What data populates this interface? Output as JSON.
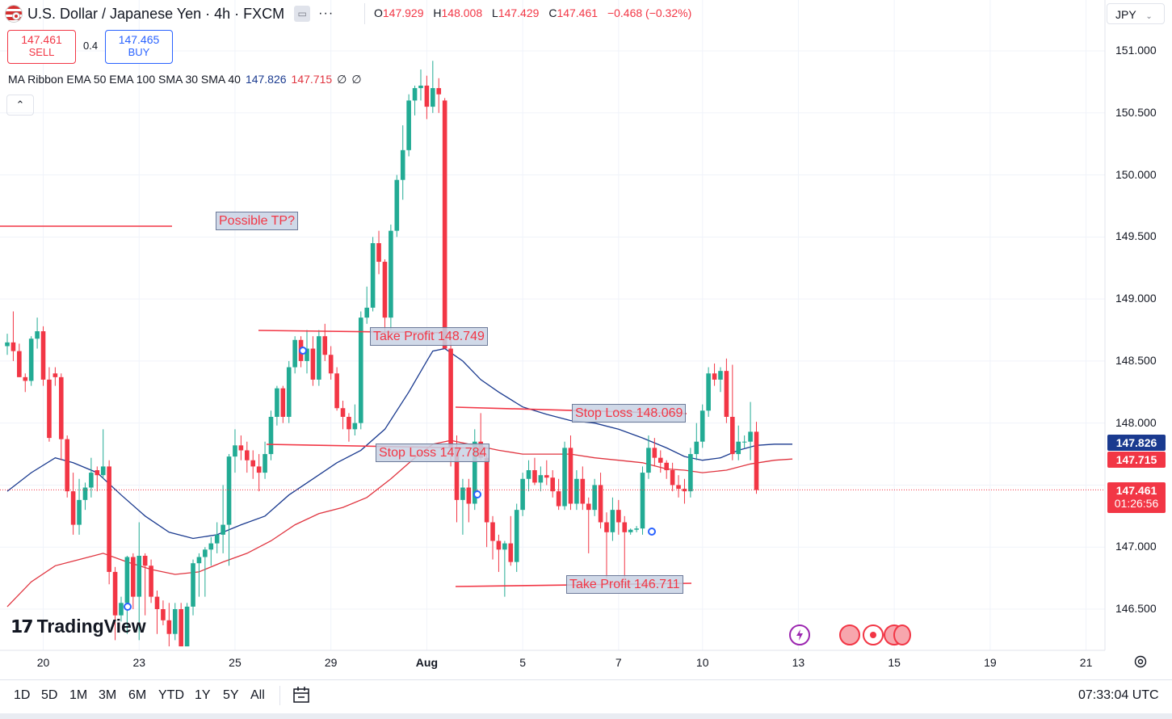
{
  "header": {
    "symbol_title": "U.S. Dollar / Japanese Yen · 4h · FXCM",
    "more_icon": "···",
    "ohlc": {
      "o_label": "O",
      "o": "147.929",
      "h_label": "H",
      "h": "148.008",
      "l_label": "L",
      "l": "147.429",
      "c_label": "C",
      "c": "147.461",
      "change": "−0.468 (−0.32%)"
    },
    "currency": "JPY"
  },
  "trade": {
    "sell_price": "147.461",
    "sell_label": "SELL",
    "spread": "0.4",
    "buy_price": "147.465",
    "buy_label": "BUY"
  },
  "indicator": {
    "label": "MA Ribbon EMA 50 EMA 100 SMA 30 SMA 40",
    "v1": "147.826",
    "v2": "147.715",
    "v3": "∅",
    "v4": "∅"
  },
  "annotations": {
    "possible_tp": "Possible TP?",
    "tp1": "Take Profit 148.749",
    "sl1": "Stop Loss 147.784",
    "sl2": "Stop Loss 148.069",
    "tp2": "Take Profit 146.711"
  },
  "price_tags": {
    "ema50": "147.826",
    "ema100": "147.715",
    "last": "147.461",
    "countdown": "01:26:56"
  },
  "chart_data": {
    "type": "candlestick",
    "symbol": "USDJPY",
    "timeframe": "4h",
    "y_ticks": [
      151.0,
      150.5,
      150.0,
      149.5,
      149.0,
      148.5,
      148.0,
      147.5,
      147.0,
      146.5
    ],
    "y_tick_labels": [
      "151.000",
      "150.500",
      "150.000",
      "149.500",
      "149.000",
      "148.500",
      "148.000",
      "147.500",
      "147.000",
      "146.500"
    ],
    "ylim": [
      146.18,
      151.38
    ],
    "x_ticks": [
      {
        "label": "20",
        "i": 6
      },
      {
        "label": "23",
        "i": 22
      },
      {
        "label": "25",
        "i": 38
      },
      {
        "label": "29",
        "i": 54
      },
      {
        "label": "Aug",
        "i": 70,
        "bold": true
      },
      {
        "label": "5",
        "i": 86
      },
      {
        "label": "7",
        "i": 102
      },
      {
        "label": "10",
        "i": 116
      },
      {
        "label": "13",
        "i": 132
      },
      {
        "label": "15",
        "i": 148
      },
      {
        "label": "19",
        "i": 164
      },
      {
        "label": "21",
        "i": 180
      }
    ],
    "candles": [
      [
        148.62,
        148.72,
        148.55,
        148.65
      ],
      [
        148.65,
        148.9,
        148.5,
        148.58
      ],
      [
        148.58,
        148.64,
        148.37,
        148.37
      ],
      [
        148.37,
        148.4,
        148.25,
        148.34
      ],
      [
        148.34,
        148.7,
        148.3,
        148.68
      ],
      [
        148.68,
        148.85,
        148.6,
        148.74
      ],
      [
        148.74,
        148.78,
        148.3,
        148.35
      ],
      [
        148.35,
        148.45,
        147.85,
        147.88
      ],
      [
        148.4,
        148.45,
        148.3,
        148.37
      ],
      [
        148.37,
        148.4,
        147.7,
        147.87
      ],
      [
        147.87,
        147.9,
        147.4,
        147.45
      ],
      [
        147.45,
        147.6,
        147.1,
        147.18
      ],
      [
        147.18,
        147.55,
        147.1,
        147.38
      ],
      [
        147.38,
        147.52,
        147.3,
        147.48
      ],
      [
        147.48,
        147.72,
        147.4,
        147.6
      ],
      [
        147.62,
        147.65,
        147.45,
        147.58
      ],
      [
        147.58,
        147.95,
        147.55,
        147.65
      ],
      [
        147.65,
        147.7,
        146.7,
        146.8
      ],
      [
        146.8,
        146.84,
        146.25,
        146.45
      ],
      [
        146.45,
        146.6,
        146.4,
        146.55
      ],
      [
        146.55,
        146.93,
        146.3,
        146.92
      ],
      [
        146.92,
        146.95,
        146.5,
        146.6
      ],
      [
        146.6,
        147.2,
        146.25,
        146.93
      ],
      [
        146.93,
        146.95,
        146.45,
        146.85
      ],
      [
        146.85,
        146.9,
        146.55,
        146.6
      ],
      [
        146.6,
        146.65,
        146.3,
        146.5
      ],
      [
        146.5,
        146.57,
        146.37,
        146.41
      ],
      [
        146.41,
        146.55,
        146.2,
        146.3
      ],
      [
        146.3,
        146.55,
        146.25,
        146.5
      ],
      [
        146.5,
        146.55,
        146.2,
        146.2
      ],
      [
        146.2,
        146.55,
        146.2,
        146.52
      ],
      [
        146.52,
        146.9,
        146.45,
        146.87
      ],
      [
        146.87,
        146.95,
        146.6,
        146.92
      ],
      [
        146.92,
        147.0,
        146.6,
        146.98
      ],
      [
        146.98,
        147.08,
        146.85,
        147.03
      ],
      [
        147.03,
        147.2,
        146.95,
        147.1
      ],
      [
        147.1,
        147.5,
        146.95,
        147.18
      ],
      [
        147.18,
        147.75,
        146.85,
        147.73
      ],
      [
        147.73,
        147.95,
        147.6,
        147.82
      ],
      [
        147.82,
        147.9,
        147.7,
        147.78
      ],
      [
        147.78,
        147.85,
        147.6,
        147.7
      ],
      [
        147.7,
        147.78,
        147.55,
        147.65
      ],
      [
        147.65,
        147.75,
        147.45,
        147.6
      ],
      [
        147.6,
        147.85,
        147.55,
        147.75
      ],
      [
        147.75,
        148.1,
        147.7,
        148.05
      ],
      [
        148.05,
        148.3,
        147.98,
        148.28
      ],
      [
        148.28,
        148.3,
        148.0,
        148.05
      ],
      [
        148.05,
        148.5,
        148.0,
        148.45
      ],
      [
        148.45,
        148.7,
        148.4,
        148.67
      ],
      [
        148.67,
        148.7,
        148.45,
        148.5
      ],
      [
        148.5,
        148.75,
        148.4,
        148.6
      ],
      [
        148.6,
        148.7,
        148.3,
        148.35
      ],
      [
        148.35,
        148.75,
        148.3,
        148.7
      ],
      [
        148.7,
        148.8,
        148.5,
        148.55
      ],
      [
        148.55,
        148.62,
        148.35,
        148.4
      ],
      [
        148.4,
        148.45,
        148.1,
        148.12
      ],
      [
        148.12,
        148.18,
        147.95,
        148.05
      ],
      [
        148.05,
        148.08,
        147.85,
        147.95
      ],
      [
        147.95,
        148.15,
        147.9,
        148.0
      ],
      [
        148.0,
        148.9,
        147.95,
        148.85
      ],
      [
        148.85,
        149.1,
        148.8,
        148.93
      ],
      [
        148.93,
        149.5,
        148.9,
        149.45
      ],
      [
        149.45,
        149.55,
        149.2,
        149.3
      ],
      [
        149.3,
        149.32,
        148.7,
        148.85
      ],
      [
        148.85,
        149.6,
        148.75,
        149.55
      ],
      [
        149.55,
        150.0,
        149.5,
        149.96
      ],
      [
        149.96,
        150.4,
        149.8,
        150.2
      ],
      [
        150.2,
        150.65,
        150.15,
        150.6
      ],
      [
        150.6,
        150.72,
        150.48,
        150.7
      ],
      [
        150.7,
        150.85,
        150.6,
        150.72
      ],
      [
        150.72,
        150.8,
        150.45,
        150.55
      ],
      [
        150.55,
        150.92,
        150.5,
        150.7
      ],
      [
        150.7,
        150.78,
        150.5,
        150.65
      ],
      [
        150.6,
        150.62,
        148.6,
        148.6
      ],
      [
        148.6,
        148.68,
        147.65,
        147.8
      ],
      [
        147.8,
        147.9,
        147.2,
        147.38
      ],
      [
        147.38,
        147.55,
        147.1,
        147.48
      ],
      [
        147.48,
        147.55,
        147.2,
        147.35
      ],
      [
        147.35,
        147.95,
        147.3,
        147.85
      ],
      [
        147.85,
        148.08,
        147.7,
        147.72
      ],
      [
        147.72,
        147.75,
        147.0,
        147.2
      ],
      [
        147.2,
        147.25,
        146.9,
        147.05
      ],
      [
        147.05,
        147.1,
        146.8,
        146.98
      ],
      [
        146.98,
        147.05,
        146.6,
        147.03
      ],
      [
        147.03,
        147.25,
        146.85,
        146.88
      ],
      [
        146.88,
        147.35,
        146.8,
        147.3
      ],
      [
        147.3,
        147.6,
        147.25,
        147.55
      ],
      [
        147.55,
        147.7,
        147.45,
        147.62
      ],
      [
        147.62,
        147.72,
        147.5,
        147.52
      ],
      [
        147.52,
        147.65,
        147.45,
        147.58
      ],
      [
        147.58,
        147.7,
        147.5,
        147.56
      ],
      [
        147.56,
        147.62,
        147.4,
        147.45
      ],
      [
        147.45,
        147.55,
        147.3,
        147.33
      ],
      [
        147.33,
        147.85,
        147.3,
        147.8
      ],
      [
        147.8,
        147.9,
        147.3,
        147.35
      ],
      [
        147.35,
        147.62,
        147.3,
        147.55
      ],
      [
        147.55,
        147.65,
        147.3,
        147.35
      ],
      [
        147.35,
        147.4,
        146.95,
        147.3
      ],
      [
        147.3,
        147.55,
        147.25,
        147.5
      ],
      [
        147.5,
        147.6,
        147.15,
        147.2
      ],
      [
        147.2,
        147.28,
        146.75,
        147.12
      ],
      [
        147.12,
        147.4,
        147.05,
        147.3
      ],
      [
        147.3,
        147.38,
        147.1,
        147.2
      ],
      [
        147.2,
        147.25,
        146.75,
        147.12
      ],
      [
        147.12,
        147.15,
        147.1,
        147.14
      ],
      [
        147.14,
        147.17,
        147.12,
        147.15
      ],
      [
        147.15,
        147.65,
        147.1,
        147.6
      ],
      [
        147.6,
        147.9,
        147.55,
        147.8
      ],
      [
        147.8,
        147.88,
        147.65,
        147.72
      ],
      [
        147.72,
        147.78,
        147.6,
        147.68
      ],
      [
        147.68,
        147.7,
        147.55,
        147.62
      ],
      [
        147.62,
        147.68,
        147.45,
        147.5
      ],
      [
        147.5,
        147.58,
        147.4,
        147.47
      ],
      [
        147.47,
        147.55,
        147.35,
        147.45
      ],
      [
        147.45,
        147.8,
        147.4,
        147.75
      ],
      [
        147.75,
        148.0,
        147.7,
        147.85
      ],
      [
        147.85,
        148.15,
        147.8,
        148.1
      ],
      [
        148.1,
        148.45,
        148.05,
        148.4
      ],
      [
        148.4,
        148.48,
        148.3,
        148.35
      ],
      [
        148.35,
        148.45,
        148.25,
        148.42
      ],
      [
        148.42,
        148.52,
        148.0,
        148.05
      ],
      [
        148.05,
        148.47,
        147.7,
        147.75
      ],
      [
        147.75,
        147.98,
        147.7,
        147.85
      ],
      [
        147.85,
        147.9,
        147.8,
        147.85
      ],
      [
        147.85,
        148.17,
        147.7,
        147.93
      ],
      [
        147.93,
        148.01,
        147.43,
        147.46
      ]
    ],
    "ema50_curve": [
      [
        0,
        147.45
      ],
      [
        4,
        147.6
      ],
      [
        8,
        147.72
      ],
      [
        11,
        147.68
      ],
      [
        15,
        147.6
      ],
      [
        19,
        147.42
      ],
      [
        23,
        147.25
      ],
      [
        27,
        147.12
      ],
      [
        31,
        147.07
      ],
      [
        35,
        147.1
      ],
      [
        39,
        147.18
      ],
      [
        43,
        147.25
      ],
      [
        47,
        147.42
      ],
      [
        51,
        147.55
      ],
      [
        55,
        147.68
      ],
      [
        59,
        147.78
      ],
      [
        63,
        147.95
      ],
      [
        67,
        148.25
      ],
      [
        70,
        148.5
      ],
      [
        71,
        148.58
      ],
      [
        73,
        148.6
      ],
      [
        76,
        148.5
      ],
      [
        79,
        148.35
      ],
      [
        82,
        148.25
      ],
      [
        86,
        148.13
      ],
      [
        90,
        148.07
      ],
      [
        94,
        148.02
      ],
      [
        98,
        148.0
      ],
      [
        102,
        147.95
      ],
      [
        106,
        147.88
      ],
      [
        110,
        147.8
      ],
      [
        113,
        147.73
      ],
      [
        116,
        147.7
      ],
      [
        119,
        147.72
      ],
      [
        122,
        147.78
      ],
      [
        125,
        147.82
      ],
      [
        128,
        147.83
      ],
      [
        131,
        147.83
      ]
    ],
    "ema100_curve": [
      [
        0,
        146.52
      ],
      [
        4,
        146.72
      ],
      [
        8,
        146.85
      ],
      [
        12,
        146.9
      ],
      [
        16,
        146.95
      ],
      [
        20,
        146.88
      ],
      [
        24,
        146.82
      ],
      [
        28,
        146.78
      ],
      [
        32,
        146.8
      ],
      [
        36,
        146.88
      ],
      [
        40,
        146.95
      ],
      [
        44,
        147.05
      ],
      [
        48,
        147.18
      ],
      [
        52,
        147.27
      ],
      [
        56,
        147.32
      ],
      [
        60,
        147.4
      ],
      [
        64,
        147.55
      ],
      [
        68,
        147.72
      ],
      [
        71,
        147.83
      ],
      [
        74,
        147.86
      ],
      [
        78,
        147.82
      ],
      [
        82,
        147.78
      ],
      [
        86,
        147.75
      ],
      [
        90,
        147.75
      ],
      [
        94,
        147.75
      ],
      [
        98,
        147.72
      ],
      [
        102,
        147.7
      ],
      [
        106,
        147.68
      ],
      [
        110,
        147.63
      ],
      [
        113,
        147.62
      ],
      [
        116,
        147.6
      ],
      [
        120,
        147.62
      ],
      [
        124,
        147.67
      ],
      [
        128,
        147.7
      ],
      [
        131,
        147.71
      ]
    ],
    "colors": {
      "up": "#22ab94",
      "down": "#f23645",
      "ema50": "#1a3a8f",
      "ema100": "#e0343f",
      "grid": "#f0f3fa"
    }
  },
  "bottom_bar": {
    "ranges": [
      "1D",
      "5D",
      "1M",
      "3M",
      "6M",
      "YTD",
      "1Y",
      "5Y",
      "All"
    ],
    "time": "07:33:04 UTC"
  },
  "logo_text": "TradingView"
}
